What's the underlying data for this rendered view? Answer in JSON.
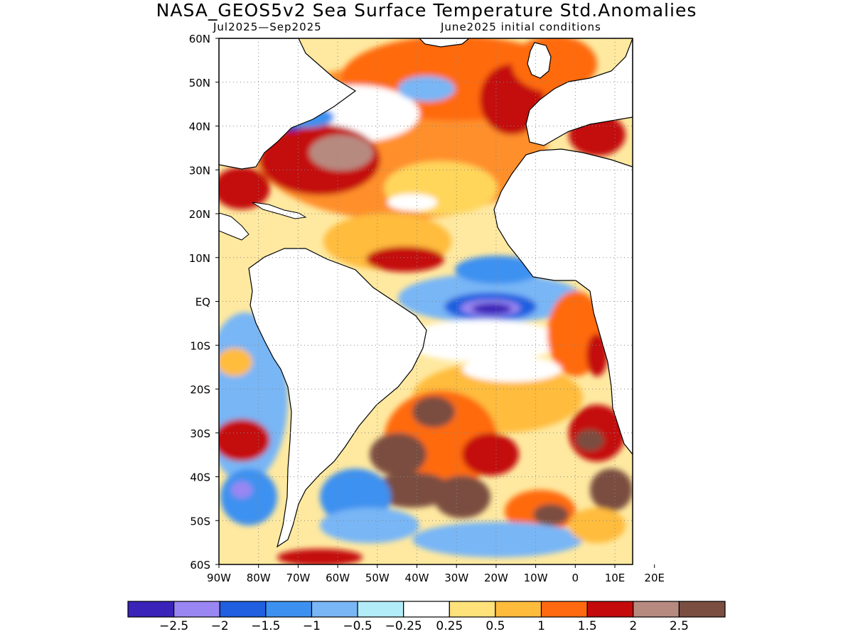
{
  "title": "NASA_GEOS5v2 Sea Surface Temperature Std.Anomalies",
  "subtitle_left": "Jul2025—Sep2025",
  "subtitle_right": "June2025 initial conditions",
  "lat_labels": [
    "60N",
    "50N",
    "40N",
    "30N",
    "20N",
    "10N",
    "EQ",
    "10S",
    "20S",
    "30S",
    "40S",
    "50S",
    "60S"
  ],
  "lon_labels": [
    "90W",
    "80W",
    "70W",
    "60W",
    "50W",
    "40W",
    "30W",
    "20W",
    "10W",
    "0",
    "10E",
    "20E"
  ],
  "colorbar": {
    "colors": [
      "#3a23b8",
      "#9a86f2",
      "#1f5fe0",
      "#3c91f0",
      "#78b6f6",
      "#b2ecf8",
      "#ffffff",
      "#ffe27a",
      "#ffbc3c",
      "#ff6a10",
      "#c40a0a",
      "#b78a80",
      "#7a4e40"
    ],
    "labels": [
      "−2.5",
      "−2",
      "−1.5",
      "−1",
      "−0.5",
      "−0.25",
      "0.25",
      "0.5",
      "1",
      "1.5",
      "2",
      "2.5"
    ]
  }
}
